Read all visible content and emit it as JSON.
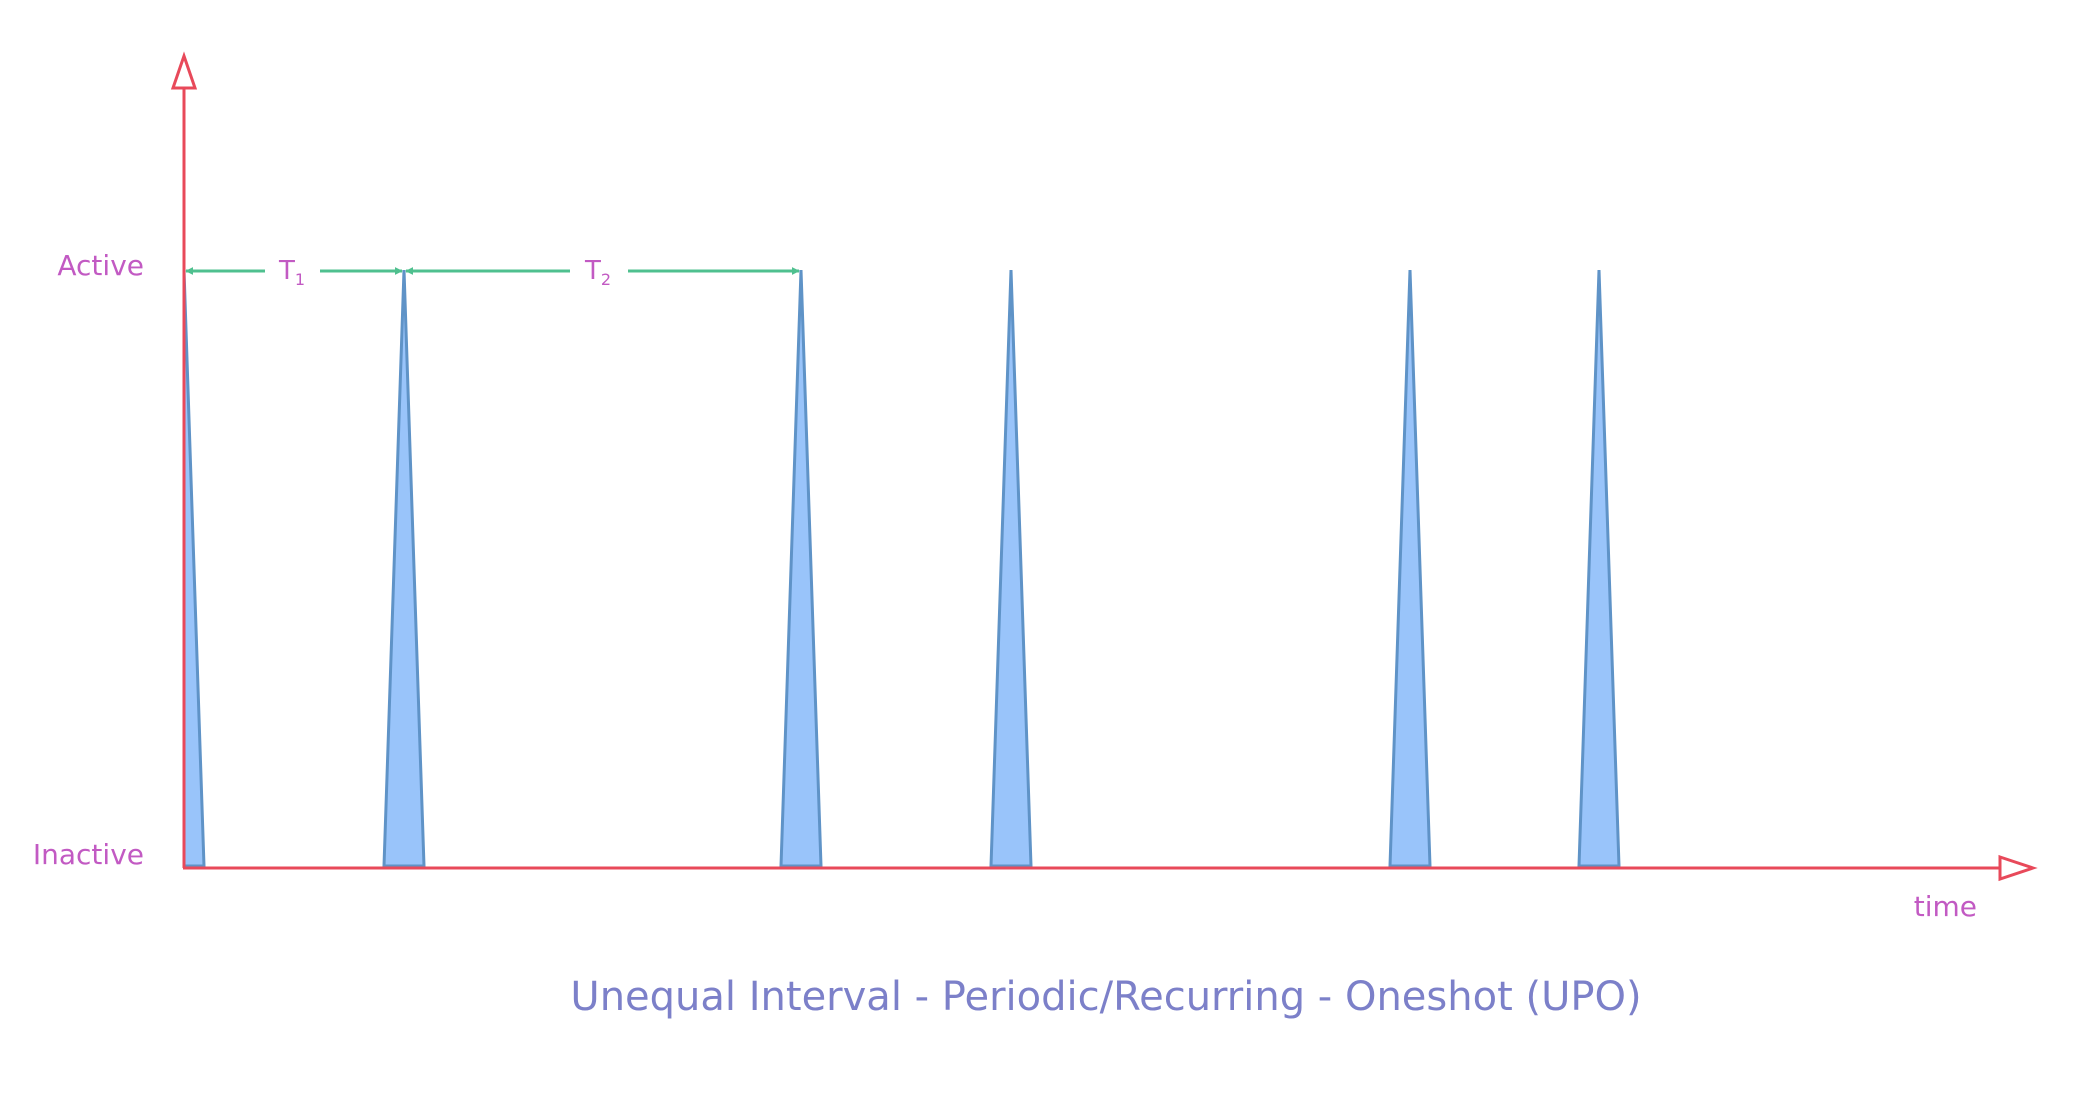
{
  "axis": {
    "y_top_label": "Active",
    "y_bottom_label": "Inactive",
    "x_label": "time"
  },
  "intervals": [
    {
      "symbol": "T",
      "subscript": "1"
    },
    {
      "symbol": "T",
      "subscript": "2"
    }
  ],
  "caption": "Unequal Interval - Periodic/Recurring - Oneshot (UPO)",
  "colors": {
    "axis": "#e8495a",
    "spike_fill": "#99c4fa",
    "spike_stroke": "#5f93c7",
    "arrow": "#4fc08f",
    "label": "#c25ac3",
    "caption": "#7c80c9"
  }
}
